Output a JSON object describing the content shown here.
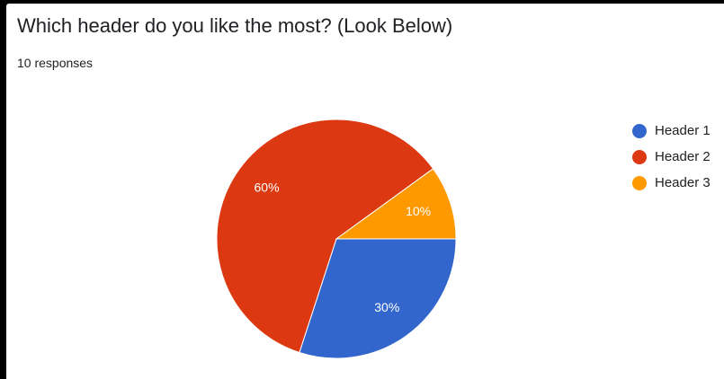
{
  "question": {
    "title": "Which header do you like the most? (Look Below)",
    "responses": "10 responses"
  },
  "chart_data": {
    "type": "pie",
    "title": "Which header do you like the most? (Look Below)",
    "subtitle": "10 responses",
    "legend_position": "right",
    "slices": [
      {
        "label": "Header 1",
        "value": 30,
        "display": "30%",
        "color": "#3366cc"
      },
      {
        "label": "Header 2",
        "value": 60,
        "display": "60%",
        "color": "#dc3912"
      },
      {
        "label": "Header 3",
        "value": 10,
        "display": "10%",
        "color": "#ff9900"
      }
    ]
  }
}
